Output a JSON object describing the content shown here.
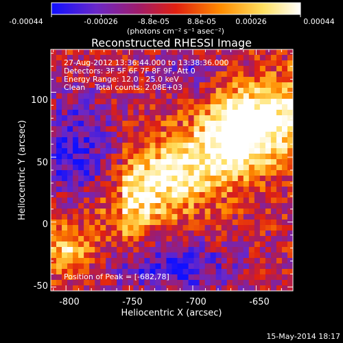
{
  "chart_data": {
    "type": "heatmap",
    "title": "Reconstructed RHESSI Image",
    "xlabel": "Heliocentric X (arcsec)",
    "ylabel": "Heliocentric Y (arcsec)",
    "xlim": [
      -812,
      -621
    ],
    "ylim": [
      -53,
      133
    ],
    "xticks": [
      -800,
      -750,
      -700,
      -650
    ],
    "yticks": [
      -50,
      0,
      50,
      100
    ],
    "xtick_labels": [
      "-800",
      "-750",
      "-700",
      "-650"
    ],
    "ytick_labels": [
      "-50",
      "0",
      "50",
      "100"
    ],
    "colorbar": {
      "range": [
        -0.00044,
        0.00044
      ],
      "ticks": [
        "-0.00044",
        "-0.00026",
        "-8.8e-05",
        "8.8e-05",
        "0.00026",
        "0.00044"
      ],
      "unit_label": "(photons cm⁻² s⁻¹ asec⁻²)",
      "colors": [
        "#1010ff",
        "#6a28c8",
        "#a01c6a",
        "#e02010",
        "#ff8c00",
        "#ffe060",
        "#ffffff"
      ]
    },
    "annotations": [
      "27-Aug-2012 13:36:44.000 to 13:38:36.000",
      "Detectors: 3F 5F 6F 7F 8F 9F, Att 0",
      "Energy Range: 12.0 - 25.0 keV",
      "Clean    Total counts: 2.08E+03"
    ],
    "peak_label": "Position of Peak = [-682,78]",
    "peak": {
      "x": -682,
      "y": 78
    },
    "grid": false
  },
  "footer_date": "15-May-2014 18:17"
}
